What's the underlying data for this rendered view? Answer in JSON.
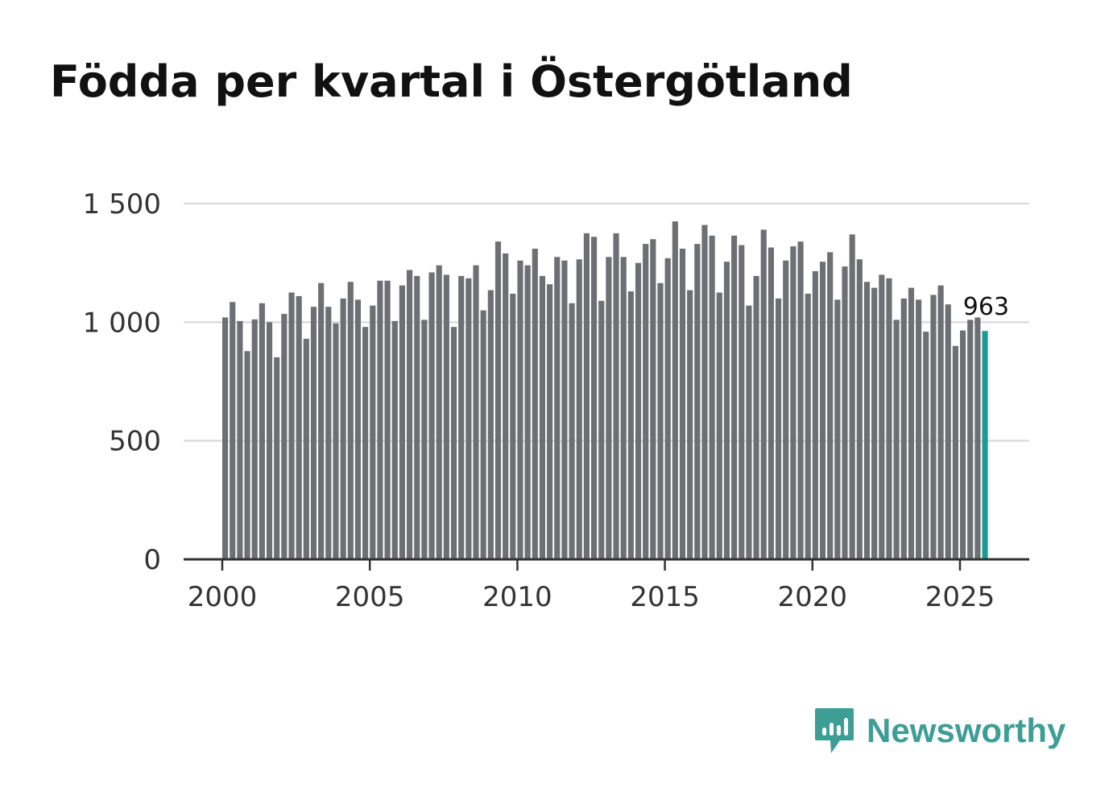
{
  "title": "Födda per kvartal i Östergötland",
  "brand": "Newsworthy",
  "colors": {
    "bar": "#6e6e75",
    "highlight": "#1a9c94",
    "brand": "#3d9e96",
    "grid": "#dddddd",
    "axis": "#333333"
  },
  "chart_data": {
    "type": "bar",
    "title": "Födda per kvartal i Östergötland",
    "xlabel": "",
    "ylabel": "",
    "ylim": [
      0,
      1500
    ],
    "yticks": [
      0,
      500,
      1000,
      1500
    ],
    "ytick_labels": [
      "0",
      "500",
      "1 000",
      "1 500"
    ],
    "xlim": [
      2000,
      2027.3
    ],
    "xticks": [
      2000,
      2005,
      2010,
      2015,
      2020,
      2025
    ],
    "xtick_labels": [
      "2000",
      "2005",
      "2010",
      "2015",
      "2020",
      "2025"
    ],
    "start_year": 2000,
    "quarters_per_year": 4,
    "series": [
      {
        "name": "Födda",
        "values": [
          1020,
          1085,
          1005,
          878,
          1012,
          1080,
          1000,
          852,
          1035,
          1125,
          1110,
          930,
          1065,
          1165,
          1065,
          995,
          1100,
          1170,
          1095,
          980,
          1070,
          1175,
          1175,
          1005,
          1155,
          1220,
          1195,
          1010,
          1210,
          1240,
          1200,
          980,
          1195,
          1185,
          1240,
          1050,
          1135,
          1340,
          1290,
          1120,
          1260,
          1240,
          1310,
          1195,
          1160,
          1275,
          1260,
          1080,
          1265,
          1375,
          1360,
          1090,
          1275,
          1375,
          1275,
          1130,
          1250,
          1330,
          1350,
          1165,
          1270,
          1425,
          1310,
          1135,
          1330,
          1410,
          1365,
          1125,
          1255,
          1365,
          1325,
          1070,
          1195,
          1390,
          1315,
          1100,
          1260,
          1320,
          1340,
          1120,
          1215,
          1255,
          1295,
          1095,
          1235,
          1370,
          1265,
          1170,
          1145,
          1200,
          1185,
          1010,
          1100,
          1145,
          1095,
          960,
          1115,
          1155,
          1075,
          900,
          965,
          1010,
          1020,
          963
        ]
      }
    ],
    "highlight": {
      "index": 103,
      "label": "963"
    }
  }
}
